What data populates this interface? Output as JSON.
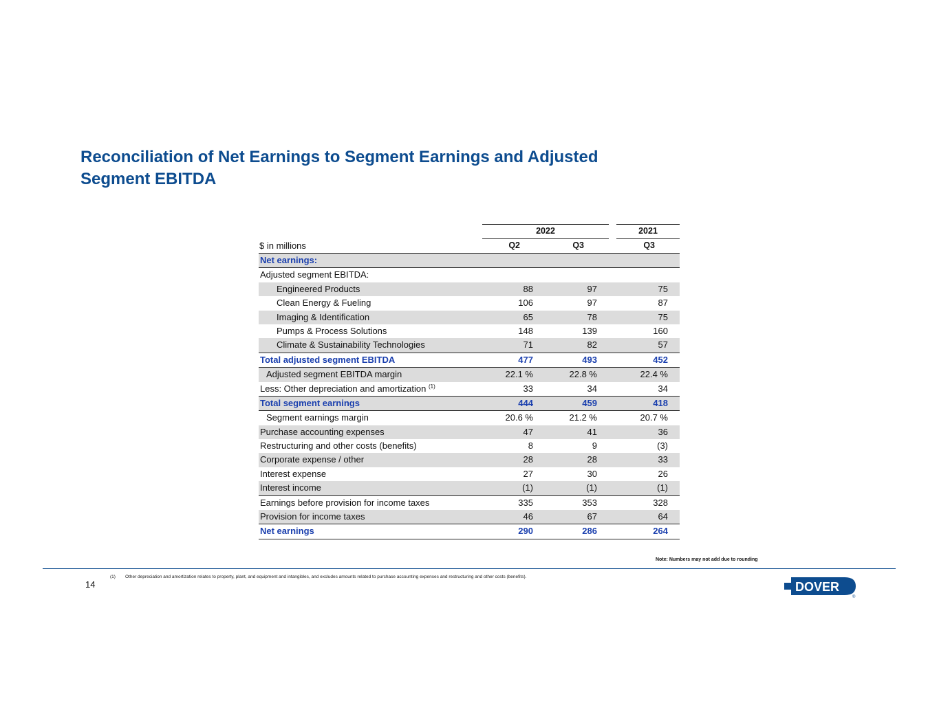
{
  "title_line1": "Reconciliation of Net Earnings to Segment Earnings and Adjusted",
  "title_line2": "Segment EBITDA",
  "table": {
    "year_2022": "2022",
    "year_2021": "2021",
    "units_label": "$ in millions",
    "col_q2": "Q2",
    "col_q3": "Q3",
    "col_q3b": "Q3",
    "rows": [
      {
        "label": "Net earnings:",
        "v1": "",
        "v2": "",
        "v3": ""
      },
      {
        "label": "Adjusted segment EBITDA:",
        "v1": "",
        "v2": "",
        "v3": ""
      },
      {
        "label": "Engineered Products",
        "v1": "88",
        "v2": "97",
        "v3": "75"
      },
      {
        "label": "Clean Energy & Fueling",
        "v1": "106",
        "v2": "97",
        "v3": "87"
      },
      {
        "label": "Imaging & Identification",
        "v1": "65",
        "v2": "78",
        "v3": "75"
      },
      {
        "label": "Pumps & Process Solutions",
        "v1": "148",
        "v2": "139",
        "v3": "160"
      },
      {
        "label": "Climate & Sustainability Technologies",
        "v1": "71",
        "v2": "82",
        "v3": "57"
      },
      {
        "label": "Total adjusted segment EBITDA",
        "v1": "477",
        "v2": "493",
        "v3": "452"
      },
      {
        "label": "Adjusted segment EBITDA margin",
        "v1": "22.1 %",
        "v2": "22.8 %",
        "v3": "22.4 %"
      },
      {
        "label": "Less: Other depreciation and amortization",
        "v1": "33",
        "v2": "34",
        "v3": "34"
      },
      {
        "label": "Total segment earnings",
        "v1": "444",
        "v2": "459",
        "v3": "418"
      },
      {
        "label": "Segment earnings margin",
        "v1": "20.6 %",
        "v2": "21.2 %",
        "v3": "20.7 %"
      },
      {
        "label": "Purchase accounting expenses",
        "v1": "47",
        "v2": "41",
        "v3": "36"
      },
      {
        "label": "Restructuring and other costs (benefits)",
        "v1": "8",
        "v2": "9",
        "v3": "(3)"
      },
      {
        "label": "Corporate expense / other",
        "v1": "28",
        "v2": "28",
        "v3": "33"
      },
      {
        "label": "Interest expense",
        "v1": "27",
        "v2": "30",
        "v3": "26"
      },
      {
        "label": "Interest income",
        "v1": "(1)",
        "v2": "(1)",
        "v3": "(1)"
      },
      {
        "label": "Earnings before provision for income taxes",
        "v1": "335",
        "v2": "353",
        "v3": "328"
      },
      {
        "label": "Provision for income taxes",
        "v1": "46",
        "v2": "67",
        "v3": "64"
      },
      {
        "label": "Net earnings",
        "v1": "290",
        "v2": "286",
        "v3": "264"
      }
    ],
    "footnote_ref": "(1)"
  },
  "note": "Note: Numbers may not add due to rounding",
  "page_number": "14",
  "footnote": {
    "mark": "(1)",
    "text": "Other depreciation and amortization relates to property, plant, and equipment and intangibles, and excludes amounts related to purchase accounting expenses and restructuring and other costs (benefits)."
  },
  "logo_text": "DOVER",
  "logo_mark": "®",
  "colors": {
    "title": "#0d4c8f",
    "highlight": "#1a3fae",
    "logo": "#0d4c8f",
    "shade": "#dcdcdc"
  }
}
